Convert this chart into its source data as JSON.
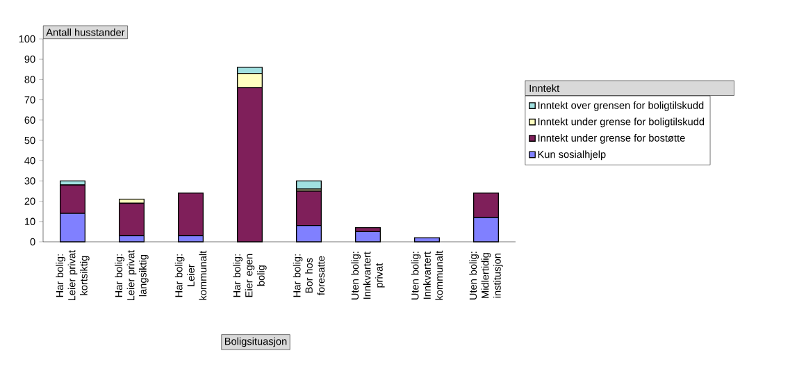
{
  "chart_data": {
    "type": "bar",
    "stacked": true,
    "ylabel": "Antall husstander",
    "xlabel": "Boligsituasjon",
    "legend_title": "Inntekt",
    "categories": [
      "Har bolig: Leier privat kortsiktig",
      "Har bolig: Leier privat langsiktig",
      "Har bolig: Leier kommunalt",
      "Har bolig: Eier egen bolig",
      "Har bolig: Bor hos foresatte",
      "Uten bolig: Innkvartert privat",
      "Uten bolig: Innkvartert kommunalt",
      "Uten bolig: Midlertidig institusjon"
    ],
    "series": [
      {
        "name": "Kun sosialhjelp",
        "color": "#8080ff",
        "values": [
          14,
          3,
          3,
          0,
          8,
          5,
          2,
          12
        ]
      },
      {
        "name": "Inntekt under grense for bostøtte",
        "color": "#7f1f5a",
        "values": [
          14,
          16,
          21,
          76,
          17,
          2,
          0,
          12
        ]
      },
      {
        "name": "Inntekt under grense for boligtilskudd",
        "color": "#ffffc0",
        "values": [
          0,
          2,
          0,
          7,
          1,
          0,
          0,
          0
        ]
      },
      {
        "name": "Inntekt over grensen for boligtilskudd",
        "color": "#a0e0e0",
        "values": [
          2,
          0,
          0,
          3,
          4,
          0,
          0,
          0
        ]
      }
    ],
    "ylim": [
      0,
      100
    ],
    "yticks": [
      0,
      10,
      20,
      30,
      40,
      50,
      60,
      70,
      80,
      90,
      100
    ],
    "grid": false,
    "legend": "right"
  }
}
